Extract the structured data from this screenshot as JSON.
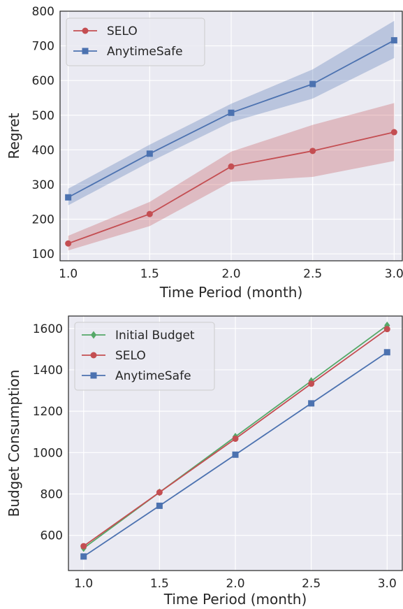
{
  "colors": {
    "background": "#eaeaf2",
    "grid": "#ffffff",
    "selo": "#c44e52",
    "anytimesafe": "#4c72b0",
    "initial_budget": "#55a868"
  },
  "chart_data": [
    {
      "type": "line",
      "xlabel": "Time Period (month)",
      "ylabel": "Regret",
      "xlim": [
        0.95,
        3.05
      ],
      "ylim": [
        80,
        800
      ],
      "xticks": [
        1.0,
        1.5,
        2.0,
        2.5,
        3.0
      ],
      "xtick_labels": [
        "1.0",
        "1.5",
        "2.0",
        "2.5",
        "3.0"
      ],
      "yticks": [
        100,
        200,
        300,
        400,
        500,
        600,
        700,
        800
      ],
      "ytick_labels": [
        "100",
        "200",
        "300",
        "400",
        "500",
        "600",
        "700",
        "800"
      ],
      "grid": true,
      "legend_position": "top-left",
      "x": [
        1.0,
        1.5,
        2.0,
        2.5,
        3.0
      ],
      "series": [
        {
          "name": "SELO",
          "color": "#c44e52",
          "marker": "circle",
          "values": [
            130,
            215,
            352,
            397,
            451
          ],
          "band_lower": [
            110,
            180,
            308,
            322,
            368
          ],
          "band_upper": [
            152,
            250,
            395,
            472,
            535
          ]
        },
        {
          "name": "AnytimeSafe",
          "color": "#4c72b0",
          "marker": "square",
          "values": [
            263,
            389,
            507,
            590,
            716
          ],
          "band_lower": [
            240,
            365,
            480,
            548,
            665
          ],
          "band_upper": [
            288,
            415,
            533,
            632,
            772
          ]
        }
      ]
    },
    {
      "type": "line",
      "xlabel": "Time Period (month)",
      "ylabel": "Budget Consumption",
      "xlim": [
        0.9,
        3.1
      ],
      "ylim": [
        430,
        1660
      ],
      "xticks": [
        1.0,
        1.5,
        2.0,
        2.5,
        3.0
      ],
      "xtick_labels": [
        "1.0",
        "1.5",
        "2.0",
        "2.5",
        "3.0"
      ],
      "yticks": [
        600,
        800,
        1000,
        1200,
        1400,
        1600
      ],
      "ytick_labels": [
        "600",
        "800",
        "1000",
        "1200",
        "1400",
        "1600"
      ],
      "grid": true,
      "legend_position": "top-left",
      "x": [
        1.0,
        1.5,
        2.0,
        2.5,
        3.0
      ],
      "series": [
        {
          "name": "Initial Budget",
          "color": "#55a868",
          "marker": "diamond",
          "values": [
            538,
            808,
            1077,
            1346,
            1615
          ]
        },
        {
          "name": "SELO",
          "color": "#c44e52",
          "marker": "circle",
          "values": [
            548,
            808,
            1067,
            1333,
            1597
          ]
        },
        {
          "name": "AnytimeSafe",
          "color": "#4c72b0",
          "marker": "square",
          "values": [
            498,
            743,
            990,
            1238,
            1485
          ]
        }
      ]
    }
  ]
}
